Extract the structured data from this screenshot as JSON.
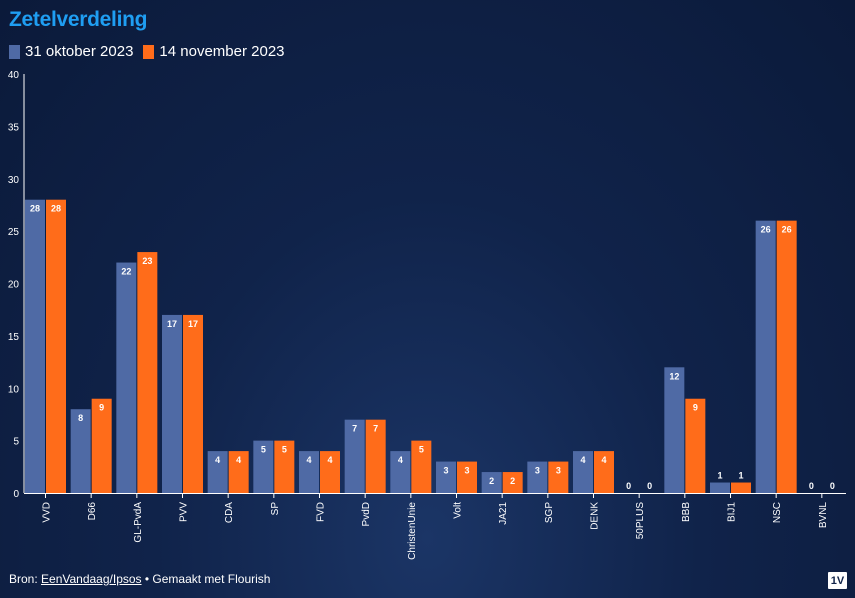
{
  "title": "Zetelverdeling",
  "legend": {
    "series1_label": "31 oktober 2023",
    "series2_label": "14 november 2023"
  },
  "colors": {
    "series1": "#4f6aa5",
    "series2": "#ff6c1a",
    "title": "#1f9ef2",
    "axis": "#ffffff"
  },
  "footer": {
    "prefix": "Bron: ",
    "source_link": "EenVandaag/Ipsos",
    "suffix": " • Gemaakt met Flourish"
  },
  "logo_text": "1V",
  "chart_data": {
    "type": "bar",
    "categories": [
      "VVD",
      "D66",
      "GL-PvdA",
      "PVV",
      "CDA",
      "SP",
      "FVD",
      "PvdD",
      "ChristenUnie",
      "Volt",
      "JA21",
      "SGP",
      "DENK",
      "50PLUS",
      "BBB",
      "BIJ1",
      "NSC",
      "BVNL"
    ],
    "series": [
      {
        "name": "31 oktober 2023",
        "values": [
          28,
          8,
          22,
          17,
          4,
          5,
          4,
          7,
          4,
          3,
          2,
          3,
          4,
          0,
          12,
          1,
          26,
          0
        ]
      },
      {
        "name": "14 november 2023",
        "values": [
          28,
          9,
          23,
          17,
          4,
          5,
          4,
          7,
          5,
          3,
          2,
          3,
          4,
          0,
          9,
          1,
          26,
          0
        ]
      }
    ],
    "ylim": [
      0,
      40
    ],
    "yticks": [
      0,
      5,
      10,
      15,
      20,
      25,
      30,
      35,
      40
    ],
    "xlabel": "",
    "ylabel": "",
    "grid": false,
    "legend_position": "top-left"
  }
}
